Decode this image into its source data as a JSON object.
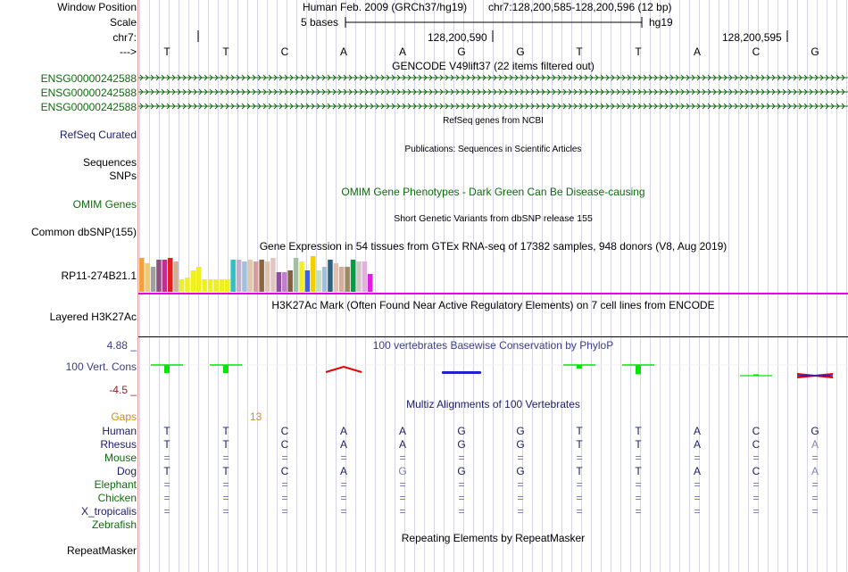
{
  "colors": {
    "grid_line": "#d4d4ec",
    "label_divider": "#e8a0a0",
    "gencode_green": "#0c6c0c",
    "refseq_blue": "#1c1c6c",
    "conservation_blue": "#3c3c8c",
    "conservation_red": "#8c1c1c",
    "gaps_orange": "#d28c1c",
    "phylop_green": "#00e600",
    "phylop_red": "#e60000",
    "phylop_blue": "#2020d0",
    "expression_magenta": "#e600e6"
  },
  "labels": {
    "window_position": "Window Position",
    "scale": "Scale",
    "chr": "chr7:",
    "strand": "--->",
    "gencode_items": [
      "ENSG00000242588",
      "ENSG00000242588",
      "ENSG00000242588"
    ],
    "refseq": "RefSeq Curated",
    "sequences": "Sequences",
    "snps": "SNPs",
    "omim": "OMIM Genes",
    "dbsnp": "Common dbSNP(155)",
    "gtex_gene": "RP11-274B21.1",
    "h3k27ac": "Layered H3K27Ac",
    "cons_max": "4.88 _",
    "cons_label": "100 Vert. Cons",
    "cons_min": "-4.5 _",
    "gaps": "Gaps",
    "species": [
      "Human",
      "Rhesus",
      "Mouse",
      "Dog",
      "Elephant",
      "Chicken",
      "X_tropicalis",
      "Zebrafish"
    ],
    "repeatmasker": "RepeatMasker"
  },
  "header": {
    "assembly": "Human Feb. 2009 (GRCh37/hg19)",
    "position": "chr7:128,200,585-128,200,596 (12 bp)",
    "scale_text": "5 bases",
    "db": "hg19",
    "coord1": "128,200,590",
    "coord2": "128,200,595"
  },
  "sequence": [
    "T",
    "T",
    "C",
    "A",
    "A",
    "G",
    "G",
    "T",
    "T",
    "A",
    "C",
    "G"
  ],
  "tracks": {
    "gencode": "GENCODE V49lift37 (22 items filtered out)",
    "refseq": "RefSeq genes from NCBI",
    "publications": "Publications: Sequences in Scientific Articles",
    "omim": "OMIM Gene Phenotypes - Dark Green Can Be Disease-causing",
    "dbsnp": "Short Genetic Variants from dbSNP release 155",
    "gtex": "Gene Expression in 54 tissues from GTEx RNA-seq of 17382 samples, 948 donors (V8, Aug 2019)",
    "h3k27ac": "H3K27Ac Mark (Often Found Near Active Regulatory Elements) on 7 cell lines from ENCODE",
    "phylop": "100 vertebrates Basewise Conservation by PhyloP",
    "multiz": "Multiz Alignments of 100 Vertebrates",
    "gaps_value": "13",
    "repeatmasker": "Repeating Elements by RepeatMasker"
  },
  "alignment": {
    "Human": [
      "T",
      "T",
      "C",
      "A",
      "A",
      "G",
      "G",
      "T",
      "T",
      "A",
      "C",
      "G"
    ],
    "Rhesus": [
      "T",
      "T",
      "C",
      "A",
      "A",
      "G",
      "G",
      "T",
      "T",
      "A",
      "C",
      "A"
    ],
    "Mouse": [
      "=",
      "=",
      "=",
      "=",
      "=",
      "=",
      "=",
      "=",
      "=",
      "=",
      "=",
      "="
    ],
    "Dog": [
      "T",
      "T",
      "C",
      "A",
      "G",
      "G",
      "G",
      "T",
      "T",
      "A",
      "C",
      "A"
    ],
    "Elephant": [
      "=",
      "=",
      "=",
      "=",
      "=",
      "=",
      "=",
      "=",
      "=",
      "=",
      "=",
      "="
    ],
    "Chicken": [
      "=",
      "=",
      "=",
      "=",
      "=",
      "=",
      "=",
      "=",
      "=",
      "=",
      "=",
      "="
    ],
    "X_tropicalis": [
      "=",
      "=",
      "=",
      "=",
      "=",
      "=",
      "=",
      "=",
      "=",
      "=",
      "=",
      "="
    ]
  },
  "gtex_expression": [
    {
      "color": "#f0a040",
      "level": 0.95
    },
    {
      "color": "#f0c870",
      "level": 0.8
    },
    {
      "color": "#a0a0a0",
      "level": 0.7
    },
    {
      "color": "#905080",
      "level": 0.9
    },
    {
      "color": "#c03090",
      "level": 0.9
    },
    {
      "color": "#e02020",
      "level": 0.95
    },
    {
      "color": "#d0b090",
      "level": 0.85
    },
    {
      "color": "#f0f020",
      "level": 0.35
    },
    {
      "color": "#f0f020",
      "level": 0.4
    },
    {
      "color": "#f0f020",
      "level": 0.6
    },
    {
      "color": "#f0f020",
      "level": 0.7
    },
    {
      "color": "#f0f020",
      "level": 0.35
    },
    {
      "color": "#f0f020",
      "level": 0.35
    },
    {
      "color": "#f0f020",
      "level": 0.35
    },
    {
      "color": "#f0f020",
      "level": 0.35
    },
    {
      "color": "#f0f020",
      "level": 0.35
    },
    {
      "color": "#30c0c0",
      "level": 0.9
    },
    {
      "color": "#c0b0d0",
      "level": 0.9
    },
    {
      "color": "#a0c0e0",
      "level": 0.85
    },
    {
      "color": "#e0c8b0",
      "level": 0.9
    },
    {
      "color": "#d0a0a0",
      "level": 0.85
    },
    {
      "color": "#8c6440",
      "level": 0.9
    },
    {
      "color": "#e0c0b0",
      "level": 0.85
    },
    {
      "color": "#e0c8c0",
      "level": 0.95
    },
    {
      "color": "#9050a0",
      "level": 0.55
    },
    {
      "color": "#c080d0",
      "level": 0.55
    },
    {
      "color": "#806040",
      "level": 0.6
    },
    {
      "color": "#a0c0a0",
      "level": 0.95
    },
    {
      "color": "#f0f020",
      "level": 0.85
    },
    {
      "color": "#4060e0",
      "level": 0.6
    },
    {
      "color": "#f0d000",
      "level": 1.0
    },
    {
      "color": "#c0e0c0",
      "level": 0.6
    },
    {
      "color": "#a0c0e0",
      "level": 0.7
    },
    {
      "color": "#306080",
      "level": 0.9
    },
    {
      "color": "#e0c0b0",
      "level": 0.8
    },
    {
      "color": "#d0b0a0",
      "level": 0.7
    },
    {
      "color": "#a08860",
      "level": 0.7
    },
    {
      "color": "#00a040",
      "level": 0.9
    },
    {
      "color": "#d0c8c0",
      "level": 0.85
    },
    {
      "color": "#e0b0e0",
      "level": 0.85
    },
    {
      "color": "#e020e0",
      "level": 0.5
    }
  ],
  "phylop_scores": [
    2.3,
    2.3,
    0.0,
    -0.8,
    0.0,
    -0.3,
    0.0,
    1.0,
    2.6,
    0.0,
    -0.4,
    -0.6
  ]
}
